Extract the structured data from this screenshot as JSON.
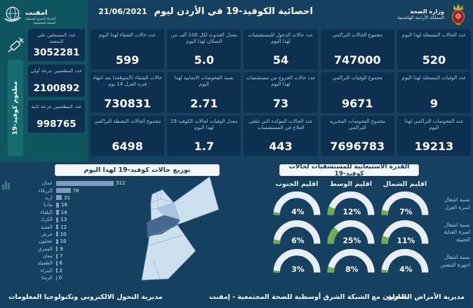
{
  "colors": {
    "background": "#16405F",
    "card": "#0D2F50",
    "sidebar_teal": "#0E5560",
    "ribbon_teal": "#196B72",
    "label_blue": "#A9C9E6",
    "bar_blue": "#7E9DBD",
    "gauge_green": "#72AE4F",
    "gauge_track": "#E8EEF3",
    "map_light": "#CCE0F0",
    "map_medium": "#A5C6DD",
    "map_dark": "#46688E",
    "pill_bg": "#F4F6F8",
    "emblem_red": "#9E1B24",
    "emblem_gold": "#C9A227"
  },
  "header": {
    "title": "احصائية الكوفيد-19 في الأردن ليوم",
    "date": "21/06/2021",
    "ministry_name": "وزارة الصحة",
    "ministry_subtitle": "المملكة الأردنية الهاشمية"
  },
  "sidebar": {
    "logo_title": "امفنت",
    "logo_sub1": "الشبكة الشرق أوسطية",
    "logo_sub2": "للصحة المجتمعية",
    "ribbon": "مطعوم كوفيد-19",
    "cards": [
      {
        "label": "عدد المسجلين على المنصة",
        "value": "3052281"
      },
      {
        "label": "عدد المطعمين جرعة أولى",
        "value": "2100892"
      },
      {
        "label": "عدد المطعمين جرعة ثانية",
        "value": "998765"
      }
    ]
  },
  "stat_cards": [
    {
      "label": "عدد الحالات المسجلة لهذا اليوم",
      "value": "520"
    },
    {
      "label": "مجموع الحالات التراكمي",
      "value": "747000"
    },
    {
      "label": "عدد حالات الدخول للمستشفيات لهذا اليوم",
      "value": "54"
    },
    {
      "label": "معدل الحدوث لكل 100 ألف من السكان لهذا اليوم",
      "value": "5.0"
    },
    {
      "label": "عدد حالات الشفاء لهذا اليوم",
      "value": "599"
    },
    {
      "label": "عدد الوفيات المسجلة لهذا اليوم",
      "value": "9"
    },
    {
      "label": "مجموع الوفيات التراكمي",
      "value": "9671"
    },
    {
      "label": "عدد حالات الخروج من مستشفيات لهذا اليوم",
      "value": "73"
    },
    {
      "label": "نسبة الفحوصات الايجابية لهذا اليوم",
      "value": "2.71"
    },
    {
      "label": "حالات الشفاء (المتوقعة) بعد انتهاء فترة العزل 14 يوم",
      "value": "730831"
    },
    {
      "label": "عدد الفحوصات التراكمي لهذا اليوم",
      "value": "19213"
    },
    {
      "label": "مجموع الفحوصات المخبرية التراكمي",
      "value": "7696783"
    },
    {
      "label": "عدد الحالات المؤكدة التي تتلقى العلاج في المستشفيات",
      "value": "443"
    },
    {
      "label": "معدل الوفيات لحالات الكوفيد-19 لهذا اليوم",
      "value": "1.7"
    },
    {
      "label": "مجموع الحالات النشطة التراكمي",
      "value": "6498"
    }
  ],
  "chart_data": [
    {
      "type": "bar",
      "orientation": "horizontal",
      "title": "توزيع حالات كوفيد-19 لهذا اليوم",
      "categories": [
        "عمان",
        "الزرقاء",
        "اربد",
        "مادبا",
        "البلقاء",
        "الكرك",
        "العقبة",
        "جرش",
        "عجلون",
        "المفرق",
        "معان",
        "الطفيلة",
        "البتراء",
        "الرمثا"
      ],
      "values": [
        312,
        78,
        31,
        16,
        14,
        13,
        12,
        10,
        10,
        9,
        7,
        6,
        2,
        0
      ],
      "xlim": [
        0,
        350
      ],
      "bar_color": "#7E9DBD",
      "legend": "none",
      "grid": false
    },
    {
      "type": "gauge-table",
      "title": "القدرة الاستيعابية للمستشفيات لحالات كوفيد-19",
      "regions": [
        "اقليم الشمال",
        "اقليم الوسط",
        "اقليم الجنوب"
      ],
      "rows": [
        {
          "label": "نسبة اشغال اسرة العزل",
          "values": [
            7,
            12,
            4
          ]
        },
        {
          "label": "نسبة اشغال اسرة العناية الحثيثة",
          "values": [
            11,
            25,
            6
          ]
        },
        {
          "label": "نسبة اشغال اجهزة التنفس",
          "values": [
            4,
            8,
            3
          ]
        }
      ],
      "unit": "%",
      "range": [
        0,
        100
      ],
      "fill_color": "#72AE4F",
      "track_color": "#E8EEF3"
    }
  ],
  "footer": {
    "left": "مديرية التحول الالكتروني وتكنولوجيا المعلومات",
    "center": "بالتعاون مع الشبكة الشرق أوسطية للصحة المجتمعية - إمفنت",
    "right": "مديرية الأمراض السارية"
  }
}
